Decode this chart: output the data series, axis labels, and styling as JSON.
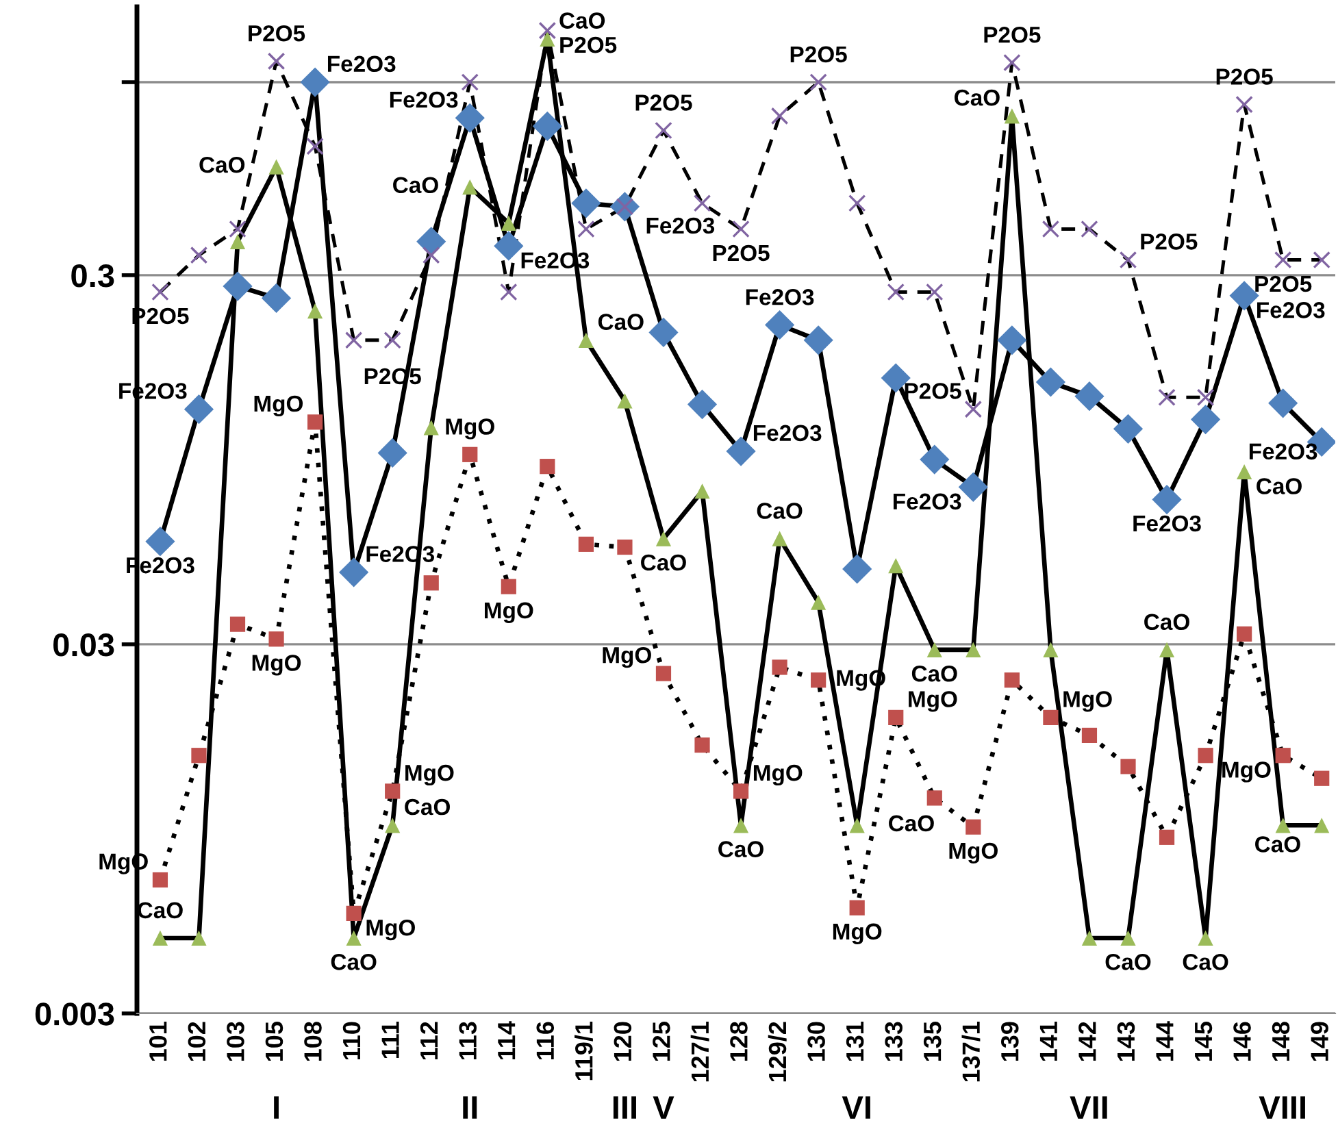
{
  "chart_data": {
    "type": "line",
    "categories": [
      "101",
      "102",
      "103",
      "105",
      "108",
      "110",
      "111",
      "112",
      "113",
      "114",
      "116",
      "119/1",
      "120",
      "125",
      "127/1",
      "128",
      "129/2",
      "130",
      "131",
      "133",
      "135",
      "137/1",
      "139",
      "141",
      "142",
      "143",
      "144",
      "145",
      "146",
      "148",
      "149"
    ],
    "series": [
      {
        "name": "Fe2O3",
        "color": "#4f81bd",
        "marker": "diamond",
        "line_style": "solid",
        "values": [
          0.057,
          0.13,
          0.28,
          0.26,
          1.0,
          0.047,
          0.099,
          0.37,
          0.8,
          0.36,
          0.76,
          0.47,
          0.46,
          0.21,
          0.134,
          0.1,
          0.22,
          0.2,
          0.048,
          0.158,
          0.095,
          0.08,
          0.2,
          0.154,
          0.141,
          0.115,
          0.074,
          0.122,
          0.264,
          0.135,
          0.106
        ],
        "value_labels": [
          null,
          "Fe2O3",
          null,
          null,
          "Fe2O3",
          "Fe2O3",
          null,
          null,
          "Fe2O3",
          "Fe2O3",
          null,
          null,
          "Fe2O3",
          null,
          null,
          "Fe2O3",
          "Fe2O3",
          null,
          null,
          null,
          null,
          "Fe2O3",
          null,
          null,
          null,
          null,
          "Fe2O3",
          null,
          "Fe2O3",
          "Fe2O3",
          null
        ]
      },
      {
        "name": "CaO",
        "color": "#9bbb59",
        "marker": "triangle",
        "line_style": "solid",
        "values": [
          0.0048,
          0.0048,
          0.37,
          0.59,
          0.24,
          0.0048,
          0.0097,
          0.116,
          0.52,
          0.415,
          1.31,
          0.2,
          0.137,
          0.058,
          0.078,
          0.0097,
          0.058,
          0.039,
          0.0097,
          0.049,
          0.029,
          0.029,
          0.81,
          0.029,
          0.0048,
          0.0048,
          0.029,
          0.0048,
          0.088,
          0.0097,
          0.0097
        ],
        "value_labels": [
          null,
          null,
          null,
          "CaO",
          null,
          "CaO",
          "CaO",
          null,
          "CaO",
          null,
          "CaO",
          "CaO",
          null,
          "CaO",
          null,
          "CaO",
          "CaO",
          null,
          "CaO",
          null,
          "CaO",
          null,
          "CaO",
          null,
          null,
          "CaO",
          "CaO",
          "CaO",
          "CaO",
          null,
          "CaO"
        ]
      },
      {
        "name": "MgO",
        "color": "#c0504d",
        "marker": "square",
        "line_style": "dotted",
        "values": [
          0.0069,
          0.015,
          0.034,
          0.031,
          0.12,
          0.0056,
          0.012,
          0.044,
          0.098,
          0.043,
          0.091,
          0.056,
          0.055,
          0.025,
          0.016,
          0.012,
          0.026,
          0.024,
          0.0058,
          0.019,
          0.0115,
          0.0096,
          0.024,
          0.019,
          0.017,
          0.014,
          0.009,
          0.015,
          0.032,
          0.015,
          0.013
        ],
        "value_labels": [
          null,
          null,
          null,
          "MgO",
          "MgO",
          "MgO",
          "MgO",
          null,
          "MgO",
          "MgO",
          null,
          null,
          null,
          "MgO",
          null,
          "MgO",
          null,
          "MgO",
          "MgO",
          "MgO",
          null,
          "MgO",
          null,
          "MgO",
          null,
          null,
          null,
          null,
          null,
          "MgO",
          null
        ]
      },
      {
        "name": "P2O5",
        "color": "#8064a2",
        "marker": "cross",
        "line_style": "dashed",
        "values": [
          0.27,
          0.34,
          0.4,
          1.14,
          0.67,
          0.2,
          0.2,
          0.34,
          1.0,
          0.27,
          1.38,
          0.4,
          0.46,
          0.74,
          0.47,
          0.4,
          0.81,
          1.0,
          0.47,
          0.27,
          0.27,
          0.13,
          1.13,
          0.4,
          0.4,
          0.33,
          0.14,
          0.14,
          0.87,
          0.33,
          0.33
        ],
        "value_labels": [
          null,
          null,
          null,
          "P2O5",
          null,
          null,
          "P2O5",
          null,
          null,
          null,
          "P2O5",
          null,
          null,
          "P2O5",
          null,
          "P2O5",
          null,
          "P2O5",
          null,
          null,
          null,
          "P2O5",
          "P2O5",
          null,
          null,
          "P2O5",
          null,
          null,
          "P2O5",
          "P2O5",
          null
        ]
      }
    ],
    "log": "y",
    "ylim": [
      0.003,
      1.6
    ],
    "yticks": [
      0.003,
      0.03,
      0.3,
      {
        "value": 1,
        "label": null
      }
    ],
    "grid": "y",
    "legend": false,
    "annotations": [
      "I",
      "II",
      "III",
      "V",
      "VI",
      "VII",
      "VIII"
    ]
  }
}
